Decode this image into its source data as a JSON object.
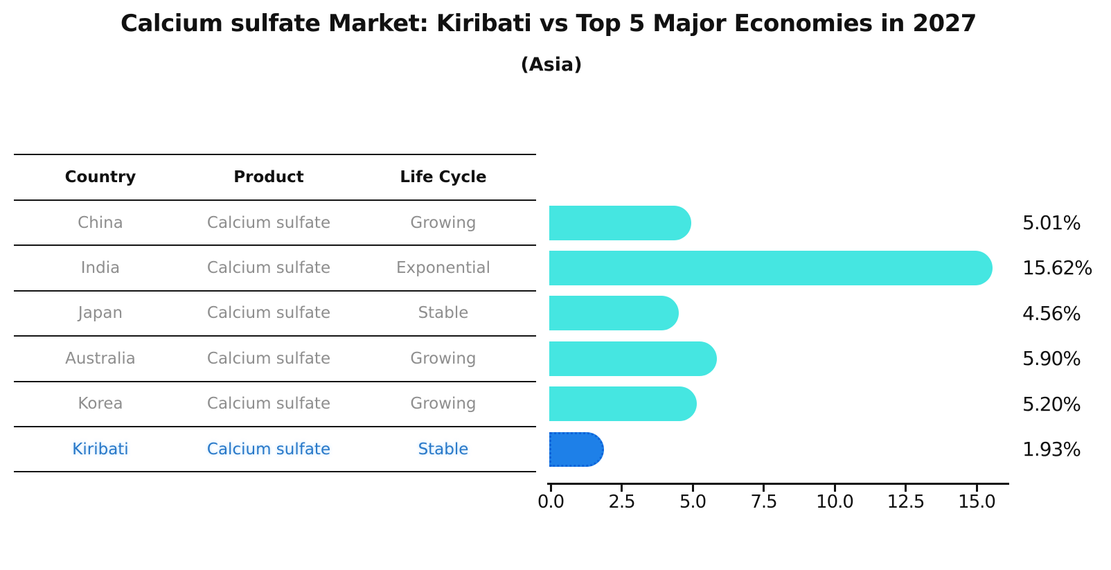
{
  "title": "Calcium sulfate Market: Kiribati vs Top 5 Major Economies in 2027",
  "subtitle": "(Asia)",
  "table": {
    "headers": [
      "Country",
      "Product",
      "Life Cycle"
    ],
    "rows": [
      {
        "country": "China",
        "product": "Calcium sulfate",
        "life_cycle": "Growing"
      },
      {
        "country": "India",
        "product": "Calcium sulfate",
        "life_cycle": "Exponential"
      },
      {
        "country": "Japan",
        "product": "Calcium sulfate",
        "life_cycle": "Stable"
      },
      {
        "country": "Australia",
        "product": "Calcium sulfate",
        "life_cycle": "Growing"
      },
      {
        "country": "Korea",
        "product": "Calcium sulfate",
        "life_cycle": "Growing"
      },
      {
        "country": "Kiribati",
        "product": "Calcium sulfate",
        "life_cycle": "Stable"
      }
    ],
    "highlight_row": "Kiribati"
  },
  "chart_data": {
    "type": "bar",
    "orientation": "horizontal",
    "categories": [
      "China",
      "India",
      "Japan",
      "Australia",
      "Korea",
      "Kiribati"
    ],
    "values": [
      5.01,
      15.62,
      4.56,
      5.9,
      5.2,
      1.93
    ],
    "value_labels": [
      "5.01%",
      "15.62%",
      "4.56%",
      "5.90%",
      "5.20%",
      "1.93%"
    ],
    "x_ticks": [
      "0.0",
      "2.5",
      "5.0",
      "7.5",
      "10.0",
      "12.5",
      "15.0"
    ],
    "x_tick_values": [
      0,
      2.5,
      5,
      7.5,
      10,
      12.5,
      15
    ],
    "xlim": [
      0,
      16.2
    ],
    "grid": false,
    "legend": "none",
    "bar_color": "#45E6E1",
    "highlight_index": 5,
    "highlight_bar_color": "#1E80E8",
    "highlight_border_color": "#0E63D8",
    "highlight_text_color": "#2878C8"
  }
}
